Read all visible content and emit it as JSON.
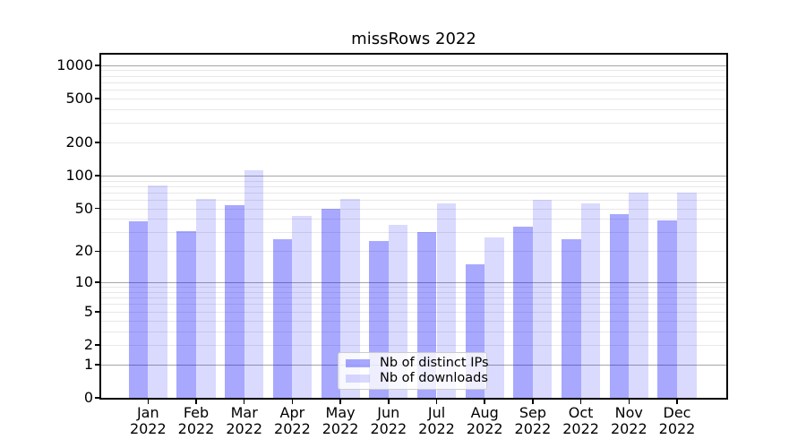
{
  "chart_data": {
    "type": "bar",
    "title": "missRows 2022",
    "categories": [
      "Jan",
      "Feb",
      "Mar",
      "Apr",
      "May",
      "Jun",
      "Jul",
      "Aug",
      "Sep",
      "Oct",
      "Nov",
      "Dec"
    ],
    "year": "2022",
    "series": [
      {
        "name": "Nb of distinct IPs",
        "color": "rgba(0,0,255,0.34)",
        "values": [
          38,
          31,
          54,
          26,
          50,
          25,
          30,
          15,
          34,
          26,
          44,
          39
        ]
      },
      {
        "name": "Nb of downloads",
        "color": "rgba(0,0,255,0.145)",
        "values": [
          81,
          61,
          111,
          43,
          61,
          35,
          56,
          27,
          60,
          56,
          70,
          70
        ]
      }
    ],
    "yscale": "log1p",
    "ylim": [
      0,
      1244
    ],
    "yticks": [
      0,
      1,
      2,
      5,
      10,
      20,
      50,
      100,
      200,
      500,
      1000
    ],
    "grid": {
      "major_ticks": [
        1,
        10,
        100,
        1000
      ],
      "minor_subs": [
        2,
        3,
        4,
        5,
        6,
        7,
        8,
        9
      ],
      "major_color": "#a6a6a6",
      "minor_color": "#e8e8e8"
    },
    "legend": {
      "position": "lower-center",
      "labels": [
        "Nb of distinct IPs",
        "Nb of downloads"
      ]
    }
  }
}
